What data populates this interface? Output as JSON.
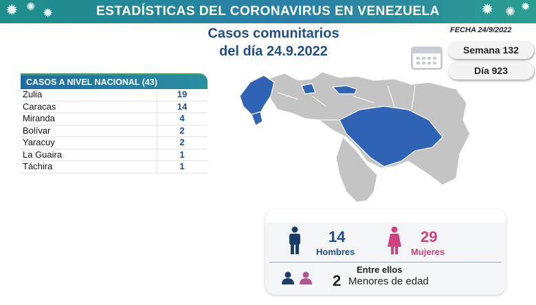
{
  "banner": {
    "title": "ESTADÍSTICAS DEL CORONAVIRUS EN VENEZUELA"
  },
  "header": {
    "line1": "Casos comunitarios",
    "line2": "del día 24.9.2022",
    "fecha": "FECHA 24/9/2022"
  },
  "badges": {
    "semana": "Semana 132",
    "dia": "Día 923"
  },
  "table": {
    "title": "CASOS A NIVEL NACIONAL  (43)",
    "rows": [
      {
        "state": "Zulia",
        "count": "19"
      },
      {
        "state": "Caracas",
        "count": "14"
      },
      {
        "state": "Miranda",
        "count": "4"
      },
      {
        "state": "Bolívar",
        "count": "2"
      },
      {
        "state": "Yaracuy",
        "count": "2"
      },
      {
        "state": "La Guaira",
        "count": "1"
      },
      {
        "state": "Táchira",
        "count": "1"
      }
    ]
  },
  "stats": {
    "hombres_num": "14",
    "hombres_label": "Hombres",
    "mujeres_num": "29",
    "mujeres_label": "Mujeres",
    "entre": "Entre ellos",
    "menores_num": "2",
    "menores_label": "Menores de edad"
  },
  "colors": {
    "accent_blue": "#1f4e8c",
    "map_highlight": "#2f63b3",
    "map_base": "#c4c4c4",
    "female": "#d0417e",
    "male": "#1c3e66"
  },
  "icons": [
    "virus-icon",
    "calendar-icon",
    "male-icon",
    "female-icon",
    "children-icon"
  ]
}
